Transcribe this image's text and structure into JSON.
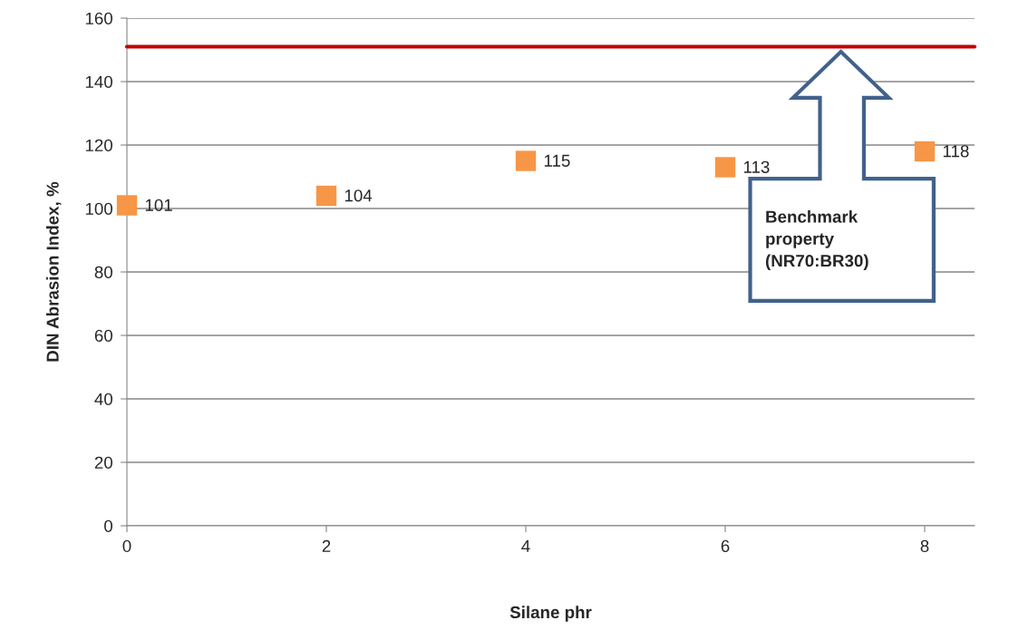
{
  "chart_data": {
    "type": "scatter",
    "xlabel": "Silane phr",
    "ylabel": "DIN Abrasion Index, %",
    "x": [
      0,
      2,
      4,
      6,
      8
    ],
    "series": [
      {
        "color": "#f79646",
        "values": [
          101,
          104,
          115,
          113,
          118
        ]
      }
    ],
    "data_labels": true,
    "marker": "square",
    "xlim": [
      0,
      8.5
    ],
    "xticks": [
      0,
      2,
      4,
      6,
      8
    ],
    "ylim": [
      0,
      160
    ],
    "yticks": [
      0,
      20,
      40,
      60,
      80,
      100,
      120,
      140,
      160
    ],
    "grid": "y",
    "legend": false,
    "annotations": [
      "Benchmark\nproperty\n(NR70:BR30)"
    ],
    "ref_lines": [
      {
        "axis": "y",
        "value": 151,
        "color": "#c00000",
        "line_style": "solid"
      }
    ]
  }
}
